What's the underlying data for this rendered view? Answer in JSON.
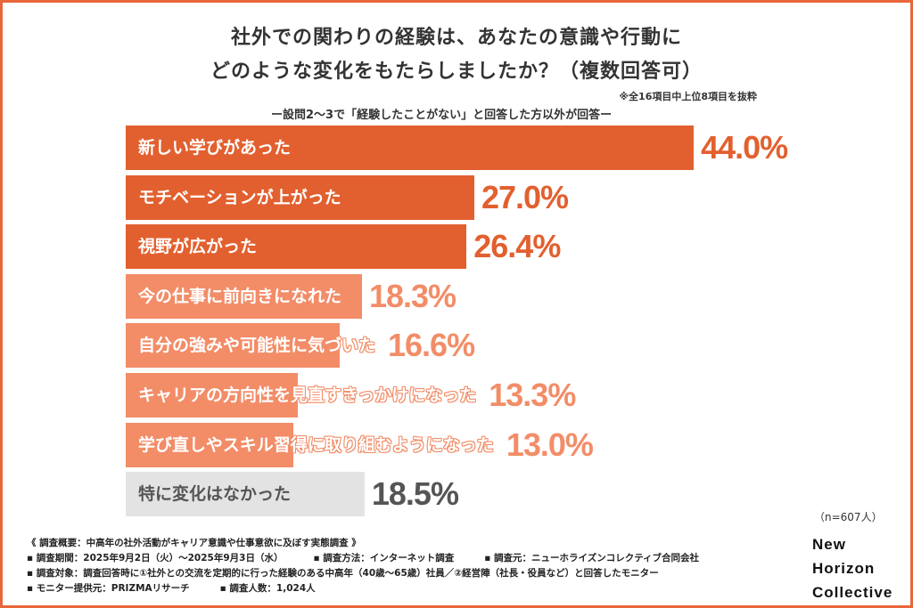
{
  "chart_data": {
    "type": "bar",
    "orientation": "horizontal",
    "title_lines": [
      "社外での関わりの経験は、あなたの意識や行動に",
      "どのような変化をもたらしましたか？（複数回答可）"
    ],
    "note": "※全16項目中上位8項目を抜粋",
    "subtitle": "ー設問2〜3で「経験したことがない」と回答した方以外が回答ー",
    "categories": [
      "新しい学びがあった",
      "モチベーションが上がった",
      "視野が広がった",
      "今の仕事に前向きになれた",
      "自分の強みや可能性に気づいた",
      "キャリアの方向性を見直すきっかけになった",
      "学び直しやスキル習得に取り組むようになった",
      "特に変化はなかった"
    ],
    "values": [
      44.0,
      27.0,
      26.4,
      18.3,
      16.6,
      13.3,
      13.0,
      18.5
    ],
    "value_labels": [
      "44.0%",
      "27.0%",
      "26.4%",
      "18.3%",
      "16.6%",
      "13.3%",
      "13.0%",
      "18.5%"
    ],
    "tiers": [
      "top",
      "top",
      "top",
      "mid",
      "mid",
      "mid",
      "mid",
      "none"
    ],
    "colors": {
      "top": "#e2602f",
      "mid": "#f28d68",
      "none": "#e3e3e3",
      "none_text": "#555555",
      "frame": "#e8673a"
    },
    "sample": "（n=607人）"
  },
  "footer": {
    "lines": [
      [
        "《 調査概要：中高年の社外活動がキャリア意識や仕事意欲に及ぼす実態調査 》"
      ],
      [
        "▪ 調査期間：2025年9月2日（火）〜2025年9月3日（水）",
        "▪ 調査方法：インターネット調査",
        "▪ 調査元：ニューホライズンコレクティブ合同会社"
      ],
      [
        "▪ 調査対象：調査回答時に①社外との交流を定期的に行った経験のある中高年（40歳〜65歳）社員／②経営陣（社長・役員など）と回答したモニター"
      ],
      [
        "▪ モニター提供元：PRIZMAリサーチ",
        "▪ 調査人数：1,024人"
      ]
    ]
  },
  "brand": [
    "New",
    "Horizon",
    "Collective"
  ]
}
